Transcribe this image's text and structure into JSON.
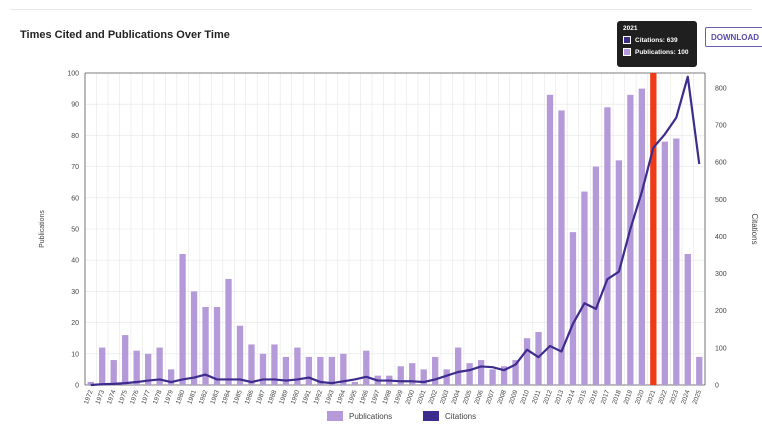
{
  "header": {
    "title": "Times Cited and Publications Over Time",
    "download_label": "DOWNLOAD"
  },
  "tooltip": {
    "year": "2021",
    "citations_label": "Citations: 639",
    "publications_label": "Publications: 100"
  },
  "legend": {
    "publications_label": "Publications",
    "citations_label": "Citations"
  },
  "colors": {
    "publications": "#b59ad9",
    "citations": "#3d2c8d",
    "highlight": "#f03a17",
    "grid": "#e6e6e6",
    "axis": "#555555"
  },
  "chart_data": {
    "type": "bar",
    "title": "Times Cited and Publications Over Time",
    "xlabel": "",
    "ylabel": "Publications",
    "y2label": "Citations",
    "ylim": [
      0,
      100
    ],
    "y2lim": [
      0,
      840
    ],
    "yticks": [
      0,
      10,
      20,
      30,
      40,
      50,
      60,
      70,
      80,
      90,
      100
    ],
    "y2ticks": [
      0,
      100,
      200,
      300,
      400,
      500,
      600,
      700,
      800
    ],
    "highlight_category": "2021",
    "grid": true,
    "legend_position": "bottom-center",
    "categories": [
      "1972",
      "1973",
      "1974",
      "1975",
      "1976",
      "1977",
      "1978",
      "1979",
      "1980",
      "1981",
      "1982",
      "1983",
      "1984",
      "1985",
      "1986",
      "1987",
      "1988",
      "1989",
      "1990",
      "1991",
      "1992",
      "1993",
      "1994",
      "1995",
      "1996",
      "1997",
      "1998",
      "1999",
      "2000",
      "2001",
      "2002",
      "2003",
      "2004",
      "2005",
      "2006",
      "2007",
      "2008",
      "2009",
      "2010",
      "2011",
      "2012",
      "2013",
      "2014",
      "2015",
      "2016",
      "2017",
      "2018",
      "2019",
      "2020",
      "2021",
      "2022",
      "2023",
      "2024",
      "2025"
    ],
    "series": [
      {
        "name": "Publications",
        "type": "bar",
        "axis": "left",
        "values": [
          1,
          12,
          8,
          16,
          11,
          10,
          12,
          5,
          42,
          30,
          25,
          25,
          34,
          19,
          13,
          10,
          13,
          9,
          12,
          9,
          9,
          9,
          10,
          1,
          11,
          3,
          3,
          6,
          7,
          5,
          9,
          5,
          12,
          7,
          8,
          5,
          6,
          8,
          15,
          17,
          93,
          88,
          49,
          62,
          70,
          89,
          72,
          93,
          95,
          100,
          78,
          79,
          42,
          9
        ]
      },
      {
        "name": "Citations",
        "type": "line",
        "axis": "right",
        "values": [
          0,
          2,
          3,
          5,
          8,
          12,
          15,
          8,
          15,
          20,
          28,
          15,
          15,
          15,
          8,
          15,
          15,
          12,
          15,
          20,
          8,
          5,
          10,
          15,
          22,
          12,
          12,
          10,
          10,
          8,
          15,
          25,
          35,
          40,
          50,
          48,
          40,
          55,
          95,
          75,
          105,
          90,
          165,
          220,
          205,
          285,
          305,
          420,
          520,
          639,
          675,
          720,
          830,
          595
        ]
      }
    ]
  }
}
